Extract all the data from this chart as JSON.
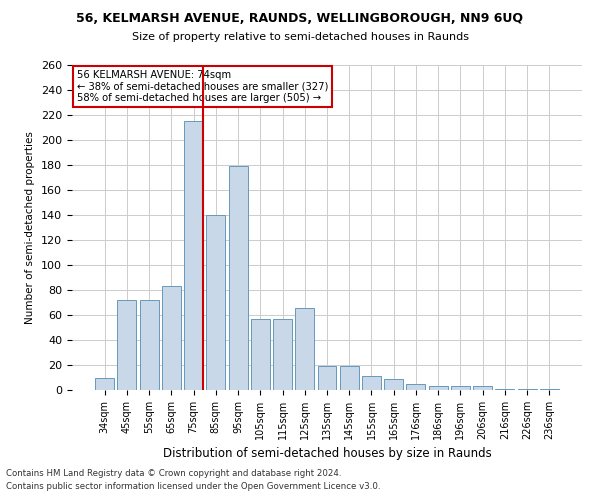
{
  "title1": "56, KELMARSH AVENUE, RAUNDS, WELLINGBOROUGH, NN9 6UQ",
  "title2": "Size of property relative to semi-detached houses in Raunds",
  "xlabel": "Distribution of semi-detached houses by size in Raunds",
  "ylabel": "Number of semi-detached properties",
  "footnote1": "Contains HM Land Registry data © Crown copyright and database right 2024.",
  "footnote2": "Contains public sector information licensed under the Open Government Licence v3.0.",
  "annotation_line1": "56 KELMARSH AVENUE: 74sqm",
  "annotation_line2": "← 38% of semi-detached houses are smaller (327)",
  "annotation_line3": "58% of semi-detached houses are larger (505) →",
  "bar_color": "#c8d8e8",
  "bar_edge_color": "#6699bb",
  "highlight_color": "#cc0000",
  "annotation_box_color": "#cc0000",
  "grid_color": "#cccccc",
  "background_color": "#ffffff",
  "categories": [
    "34sqm",
    "45sqm",
    "55sqm",
    "65sqm",
    "75sqm",
    "85sqm",
    "95sqm",
    "105sqm",
    "115sqm",
    "125sqm",
    "135sqm",
    "145sqm",
    "155sqm",
    "165sqm",
    "176sqm",
    "186sqm",
    "196sqm",
    "206sqm",
    "216sqm",
    "226sqm",
    "236sqm"
  ],
  "values": [
    10,
    72,
    72,
    83,
    215,
    140,
    179,
    57,
    57,
    66,
    19,
    19,
    11,
    9,
    5,
    3,
    3,
    3,
    1,
    1,
    1
  ],
  "highlight_index": 4,
  "ylim": [
    0,
    260
  ],
  "yticks": [
    0,
    20,
    40,
    60,
    80,
    100,
    120,
    140,
    160,
    180,
    200,
    220,
    240,
    260
  ]
}
